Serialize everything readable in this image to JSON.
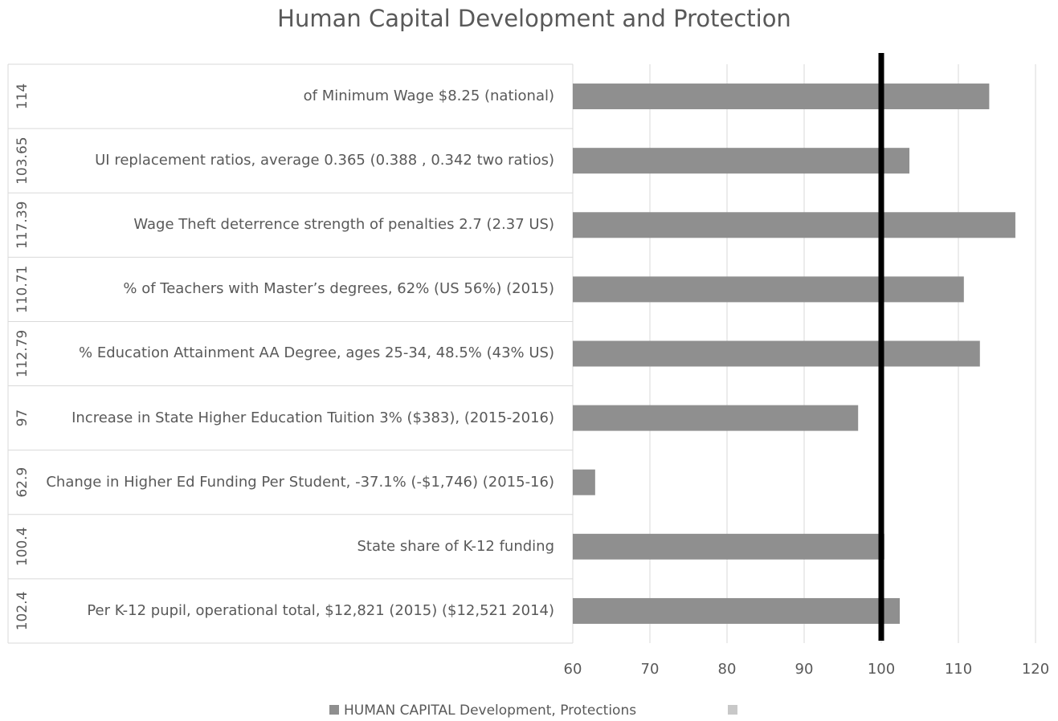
{
  "chart_data": {
    "type": "bar",
    "orientation": "horizontal",
    "title": "Human Capital Development and Protection",
    "categories": [
      "of Minimum Wage $8.25 (national)",
      "UI replacement ratios,  average 0.365 (0.388 , 0.342 two ratios)",
      "Wage Theft deterrence strength of penalties 2.7 (2.37 US)",
      "% of Teachers with Master’s degrees, 62% (US 56%) (2015)",
      "% Education Attainment AA Degree, ages 25-34, 48.5% (43% US)",
      "Increase in State Higher Education Tuition 3% ($383), (2015-2016)",
      "Change in Higher Ed Funding Per Student, -37.1%  (-$1,746) (2015-16)",
      "State share of K-12 funding",
      "Per K-12 pupil, operational total, $12,821 (2015) ($12,521 2014)"
    ],
    "series": [
      {
        "name": "HUMAN CAPITAL Development, Protections",
        "color": "#8f8f8f",
        "values": [
          114,
          103.65,
          117.39,
          110.71,
          112.79,
          97,
          62.9,
          100.4,
          102.4
        ]
      }
    ],
    "xlim": [
      60,
      120
    ],
    "xticks": [
      60,
      70,
      80,
      90,
      100,
      110,
      120
    ],
    "grid": true,
    "reference_line": {
      "value": 100,
      "color": "#000000"
    },
    "legend": "bottom"
  }
}
